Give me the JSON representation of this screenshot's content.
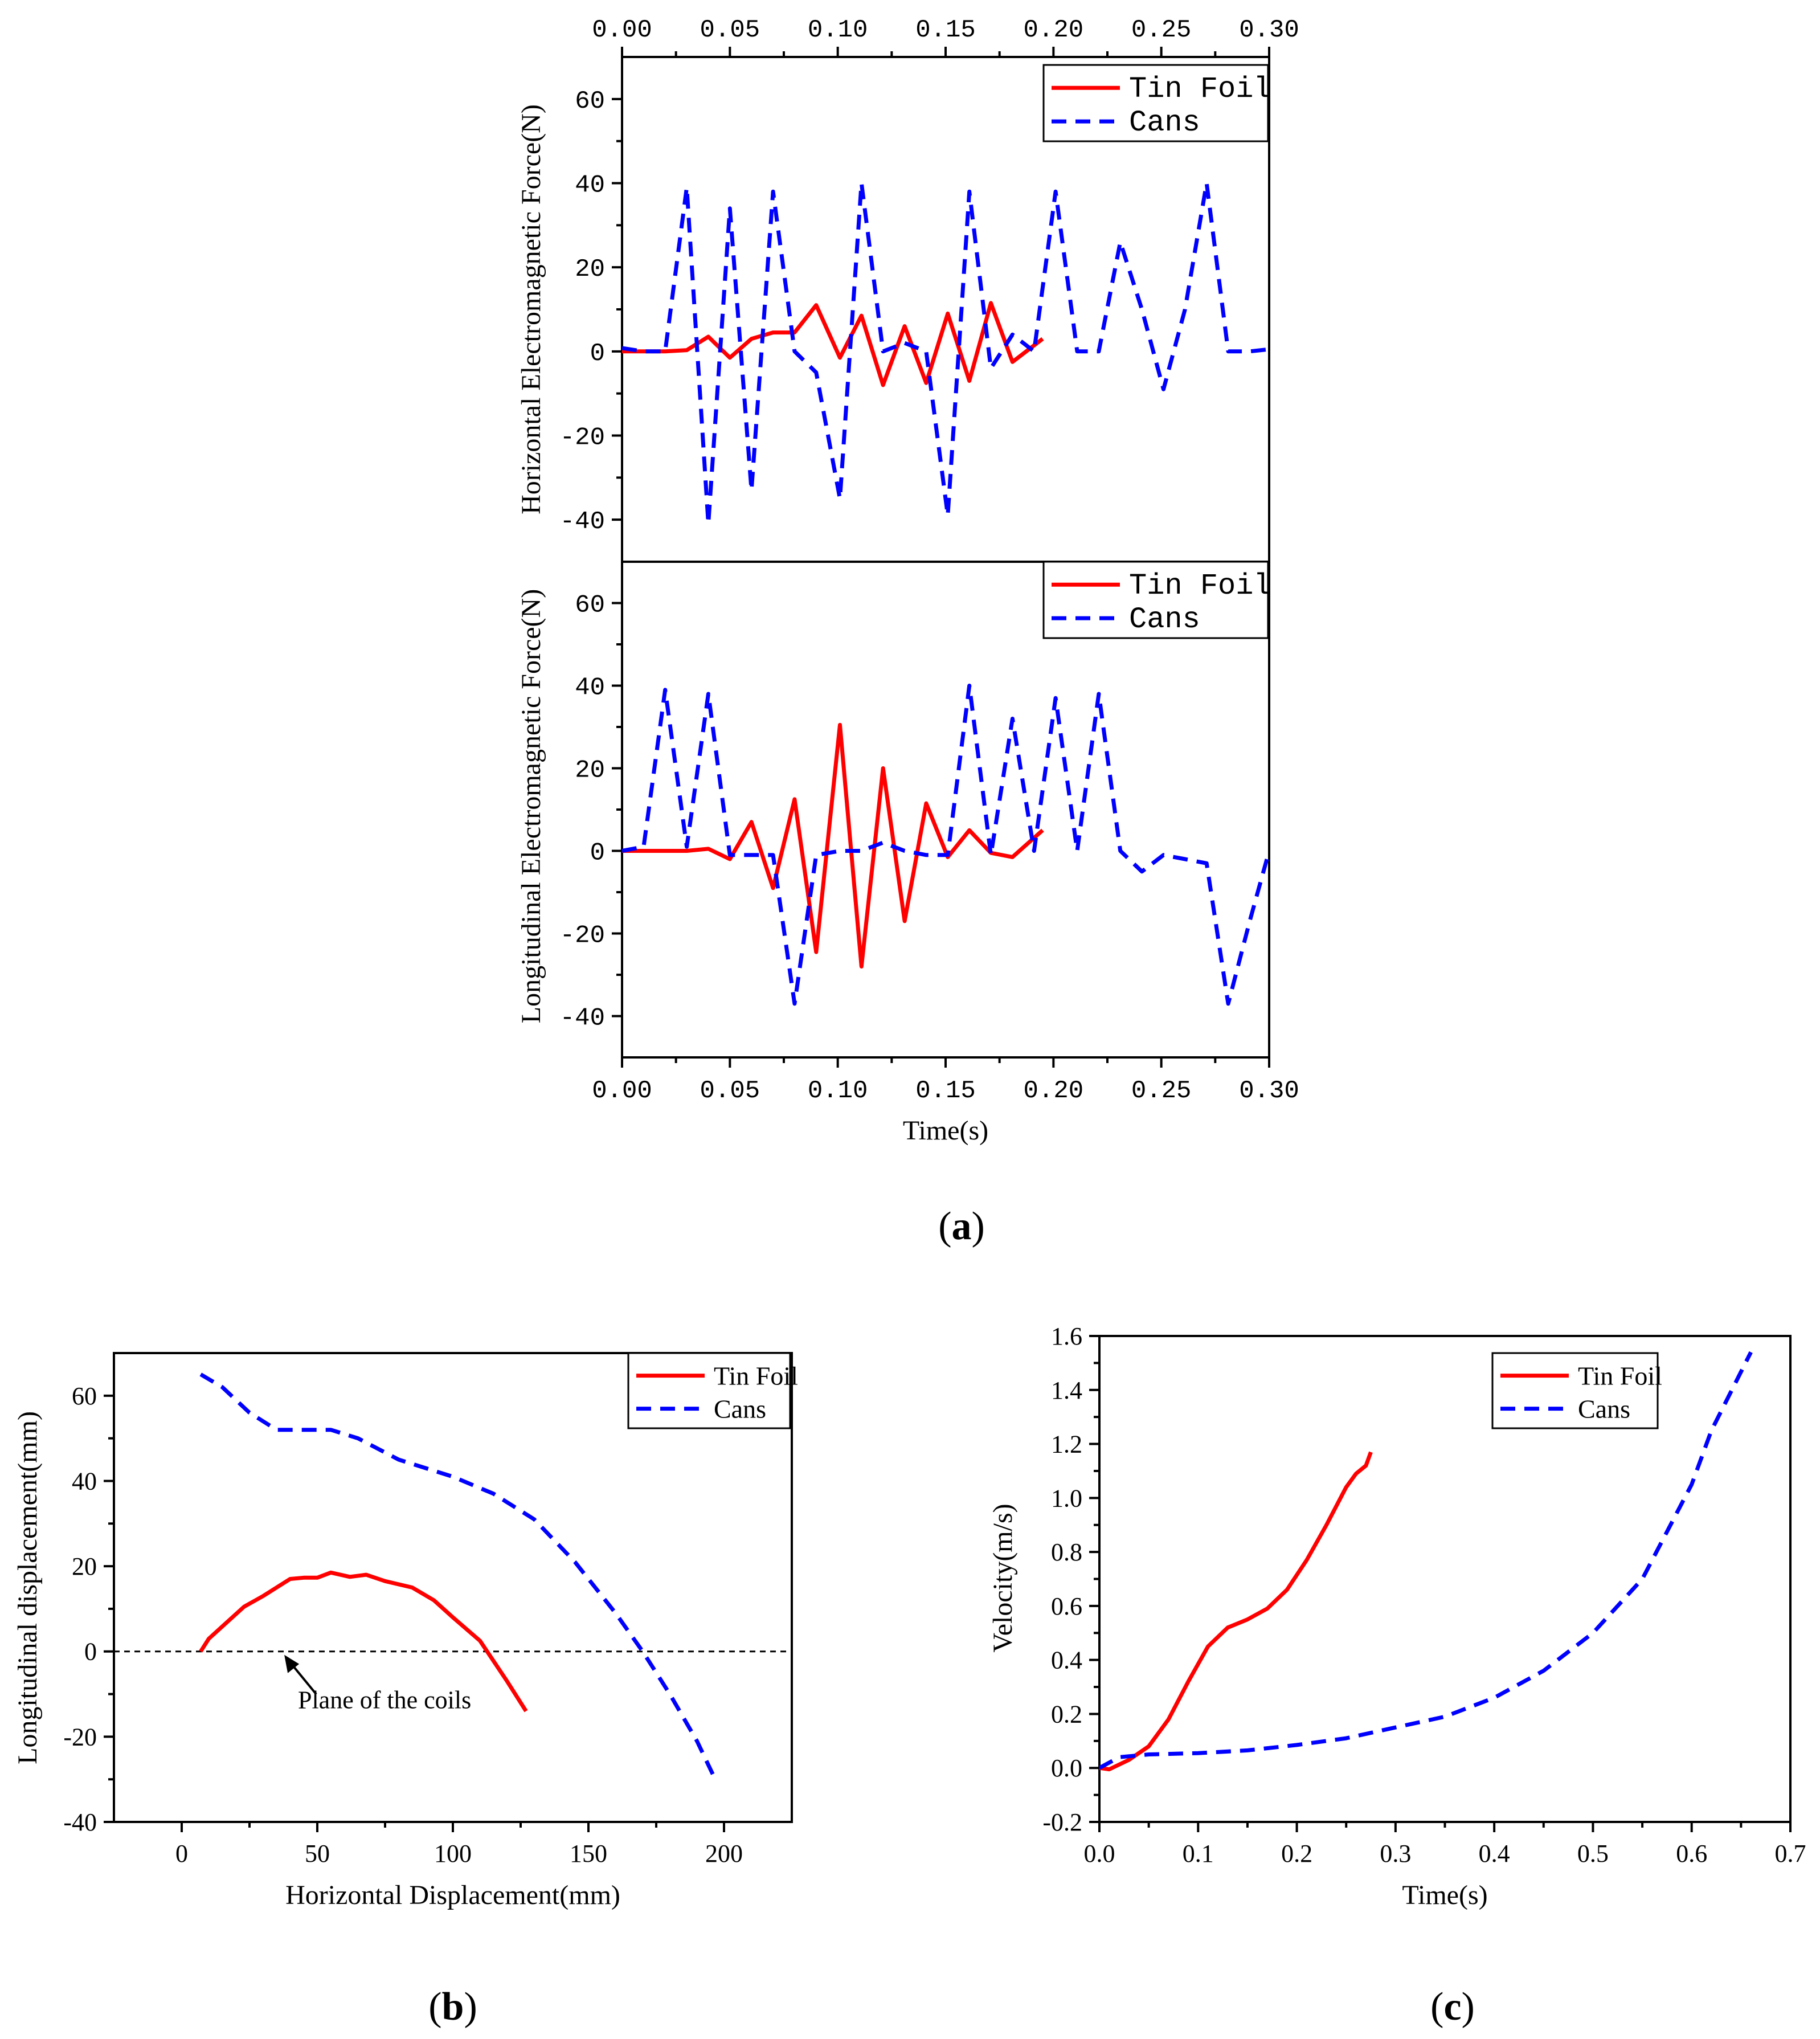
{
  "colors": {
    "tin_foil": "#ff0000",
    "cans": "#0000ff"
  },
  "panel_labels": {
    "a": "a",
    "b": "b",
    "c": "c"
  },
  "chart_data": [
    {
      "id": "a-top",
      "type": "line",
      "title": "",
      "xlabel": "",
      "ylabel": "Horizontal Electromagnetic Force(N)",
      "xlim": [
        0,
        0.3
      ],
      "ylim": [
        -50,
        70
      ],
      "xticks": [
        0.0,
        0.05,
        0.1,
        0.15,
        0.2,
        0.25,
        0.3
      ],
      "xtick_labels": [
        "0.00",
        "0.05",
        "0.10",
        "0.15",
        "0.20",
        "0.25",
        "0.30"
      ],
      "xticks_position": "top",
      "yticks": [
        -40,
        -20,
        0,
        20,
        40,
        60
      ],
      "ytick_labels": [
        "-40",
        "-20",
        "0",
        "20",
        "40",
        "60"
      ],
      "legend": {
        "position": "top-right",
        "entries": [
          "Tin Foil",
          "Cans"
        ]
      },
      "series": [
        {
          "name": "Tin Foil",
          "style": "solid",
          "x": [
            0.0,
            0.01,
            0.02,
            0.03,
            0.04,
            0.05,
            0.06,
            0.07,
            0.08,
            0.09,
            0.101,
            0.111,
            0.121,
            0.131,
            0.141,
            0.151,
            0.161,
            0.171,
            0.181,
            0.195
          ],
          "y": [
            0,
            0,
            0,
            0.3,
            3.5,
            -1.5,
            3,
            4.5,
            4.5,
            11,
            -1.5,
            8.5,
            -8,
            6,
            -7.5,
            9,
            -7,
            11.5,
            -2.5,
            3
          ]
        },
        {
          "name": "Cans",
          "style": "dashed",
          "x": [
            0.0,
            0.01,
            0.02,
            0.03,
            0.04,
            0.05,
            0.06,
            0.07,
            0.08,
            0.09,
            0.101,
            0.111,
            0.121,
            0.131,
            0.141,
            0.151,
            0.161,
            0.171,
            0.181,
            0.191,
            0.201,
            0.211,
            0.221,
            0.231,
            0.241,
            0.251,
            0.261,
            0.271,
            0.281,
            0.291,
            0.3
          ],
          "y": [
            0.8,
            0,
            0,
            39,
            -41,
            34,
            -33,
            38,
            0,
            -5,
            -35,
            40,
            0,
            2,
            0,
            -39,
            38,
            -4,
            4,
            0,
            38,
            0,
            0,
            26,
            10,
            -9,
            10,
            40,
            0,
            0,
            0.5
          ]
        }
      ]
    },
    {
      "id": "a-bottom",
      "type": "line",
      "title": "",
      "xlabel": "Time(s)",
      "ylabel": "Longitudinal Electromagnetic Force(N)",
      "xlim": [
        0,
        0.3
      ],
      "ylim": [
        -50,
        70
      ],
      "xticks": [
        0.0,
        0.05,
        0.1,
        0.15,
        0.2,
        0.25,
        0.3
      ],
      "xtick_labels": [
        "0.00",
        "0.05",
        "0.10",
        "0.15",
        "0.20",
        "0.25",
        "0.30"
      ],
      "yticks": [
        -40,
        -20,
        0,
        20,
        40,
        60
      ],
      "ytick_labels": [
        "-40",
        "-20",
        "0",
        "20",
        "40",
        "60"
      ],
      "legend": {
        "position": "top-right",
        "entries": [
          "Tin Foil",
          "Cans"
        ]
      },
      "series": [
        {
          "name": "Tin Foil",
          "style": "solid",
          "x": [
            0.0,
            0.01,
            0.02,
            0.03,
            0.04,
            0.05,
            0.06,
            0.07,
            0.08,
            0.09,
            0.101,
            0.111,
            0.121,
            0.131,
            0.141,
            0.151,
            0.161,
            0.171,
            0.181,
            0.195
          ],
          "y": [
            0,
            0,
            0,
            0,
            0.5,
            -2,
            7,
            -9,
            12.5,
            -24.5,
            30.5,
            -28,
            20,
            -17,
            11.5,
            -1.5,
            5,
            -0.5,
            -1.5,
            5
          ]
        },
        {
          "name": "Cans",
          "style": "dashed",
          "x": [
            0.0,
            0.01,
            0.02,
            0.03,
            0.04,
            0.05,
            0.06,
            0.07,
            0.08,
            0.09,
            0.101,
            0.111,
            0.121,
            0.131,
            0.141,
            0.151,
            0.161,
            0.171,
            0.181,
            0.191,
            0.201,
            0.211,
            0.221,
            0.231,
            0.241,
            0.251,
            0.261,
            0.271,
            0.281,
            0.291,
            0.3
          ],
          "y": [
            0,
            1,
            39,
            1,
            38,
            -1,
            -1,
            -1,
            -37,
            -1,
            0,
            0,
            2,
            0,
            -1,
            -1,
            40,
            -1,
            32,
            0,
            37,
            0,
            38,
            0,
            -5,
            -1,
            -2,
            -3,
            -37,
            -17,
            0
          ]
        }
      ]
    },
    {
      "id": "b",
      "type": "line",
      "title": "",
      "xlabel": "Horizontal Displacement(mm)",
      "ylabel": "Longitudinal displacement(mm)",
      "xlim": [
        -25,
        225
      ],
      "ylim": [
        -40,
        70
      ],
      "xticks": [
        0,
        50,
        100,
        150,
        200
      ],
      "xtick_labels": [
        "0",
        "50",
        "100",
        "150",
        "200"
      ],
      "yticks": [
        -40,
        -20,
        0,
        20,
        40,
        60
      ],
      "ytick_labels": [
        "-40",
        "-20",
        "0",
        "20",
        "40",
        "60"
      ],
      "legend": {
        "position": "top-right",
        "entries": [
          "Tin Foil",
          "Cans"
        ]
      },
      "reference_line": {
        "y": 0,
        "style": "dashed"
      },
      "annotation": {
        "text": "Plane of the coils",
        "x": 37,
        "y": 0
      },
      "series": [
        {
          "name": "Tin Foil",
          "style": "solid",
          "x": [
            7,
            10,
            23,
            30,
            40,
            45,
            50,
            55,
            62,
            68,
            75,
            85,
            93,
            100,
            110,
            120,
            127
          ],
          "y": [
            0,
            3,
            10.5,
            13,
            17,
            17.3,
            17.3,
            18.5,
            17.5,
            18,
            16.5,
            15,
            12,
            8,
            2.5,
            -7,
            -14
          ]
        },
        {
          "name": "Cans",
          "style": "dashed",
          "x": [
            7,
            15,
            25,
            35,
            45,
            55,
            65,
            80,
            100,
            115,
            130,
            145,
            160,
            170,
            180,
            190,
            196
          ],
          "y": [
            65,
            62,
            56,
            52,
            52,
            52,
            50,
            45,
            41,
            37,
            31,
            21,
            9,
            0,
            -10,
            -21,
            -29
          ]
        }
      ]
    },
    {
      "id": "c",
      "type": "line",
      "title": "",
      "xlabel": "Time(s)",
      "ylabel": "Velocity(m/s)",
      "xlim": [
        0,
        0.7
      ],
      "ylim": [
        -0.2,
        1.6
      ],
      "xticks": [
        0.0,
        0.1,
        0.2,
        0.3,
        0.4,
        0.5,
        0.6,
        0.7
      ],
      "xtick_labels": [
        "0.0",
        "0.1",
        "0.2",
        "0.3",
        "0.4",
        "0.5",
        "0.6",
        "0.7"
      ],
      "yticks": [
        -0.2,
        0.0,
        0.2,
        0.4,
        0.6,
        0.8,
        1.0,
        1.2,
        1.4,
        1.6
      ],
      "ytick_labels": [
        "-0.2",
        "0.0",
        "0.2",
        "0.4",
        "0.6",
        "0.8",
        "1.0",
        "1.2",
        "1.4",
        "1.6"
      ],
      "legend": {
        "position": "top-right",
        "entries": [
          "Tin Foil",
          "Cans"
        ]
      },
      "series": [
        {
          "name": "Tin Foil",
          "style": "solid",
          "x": [
            0.0,
            0.01,
            0.03,
            0.05,
            0.07,
            0.09,
            0.11,
            0.13,
            0.15,
            0.17,
            0.19,
            0.21,
            0.23,
            0.25,
            0.26,
            0.27,
            0.275
          ],
          "y": [
            0.0,
            -0.005,
            0.03,
            0.08,
            0.18,
            0.32,
            0.45,
            0.52,
            0.55,
            0.59,
            0.66,
            0.77,
            0.9,
            1.04,
            1.09,
            1.12,
            1.17
          ]
        },
        {
          "name": "Cans",
          "style": "dashed",
          "x": [
            0.0,
            0.02,
            0.05,
            0.1,
            0.15,
            0.2,
            0.25,
            0.3,
            0.35,
            0.4,
            0.45,
            0.5,
            0.55,
            0.6,
            0.62,
            0.66
          ],
          "y": [
            0.0,
            0.04,
            0.05,
            0.055,
            0.065,
            0.085,
            0.11,
            0.15,
            0.19,
            0.26,
            0.36,
            0.5,
            0.7,
            1.05,
            1.25,
            1.54
          ]
        }
      ]
    }
  ]
}
